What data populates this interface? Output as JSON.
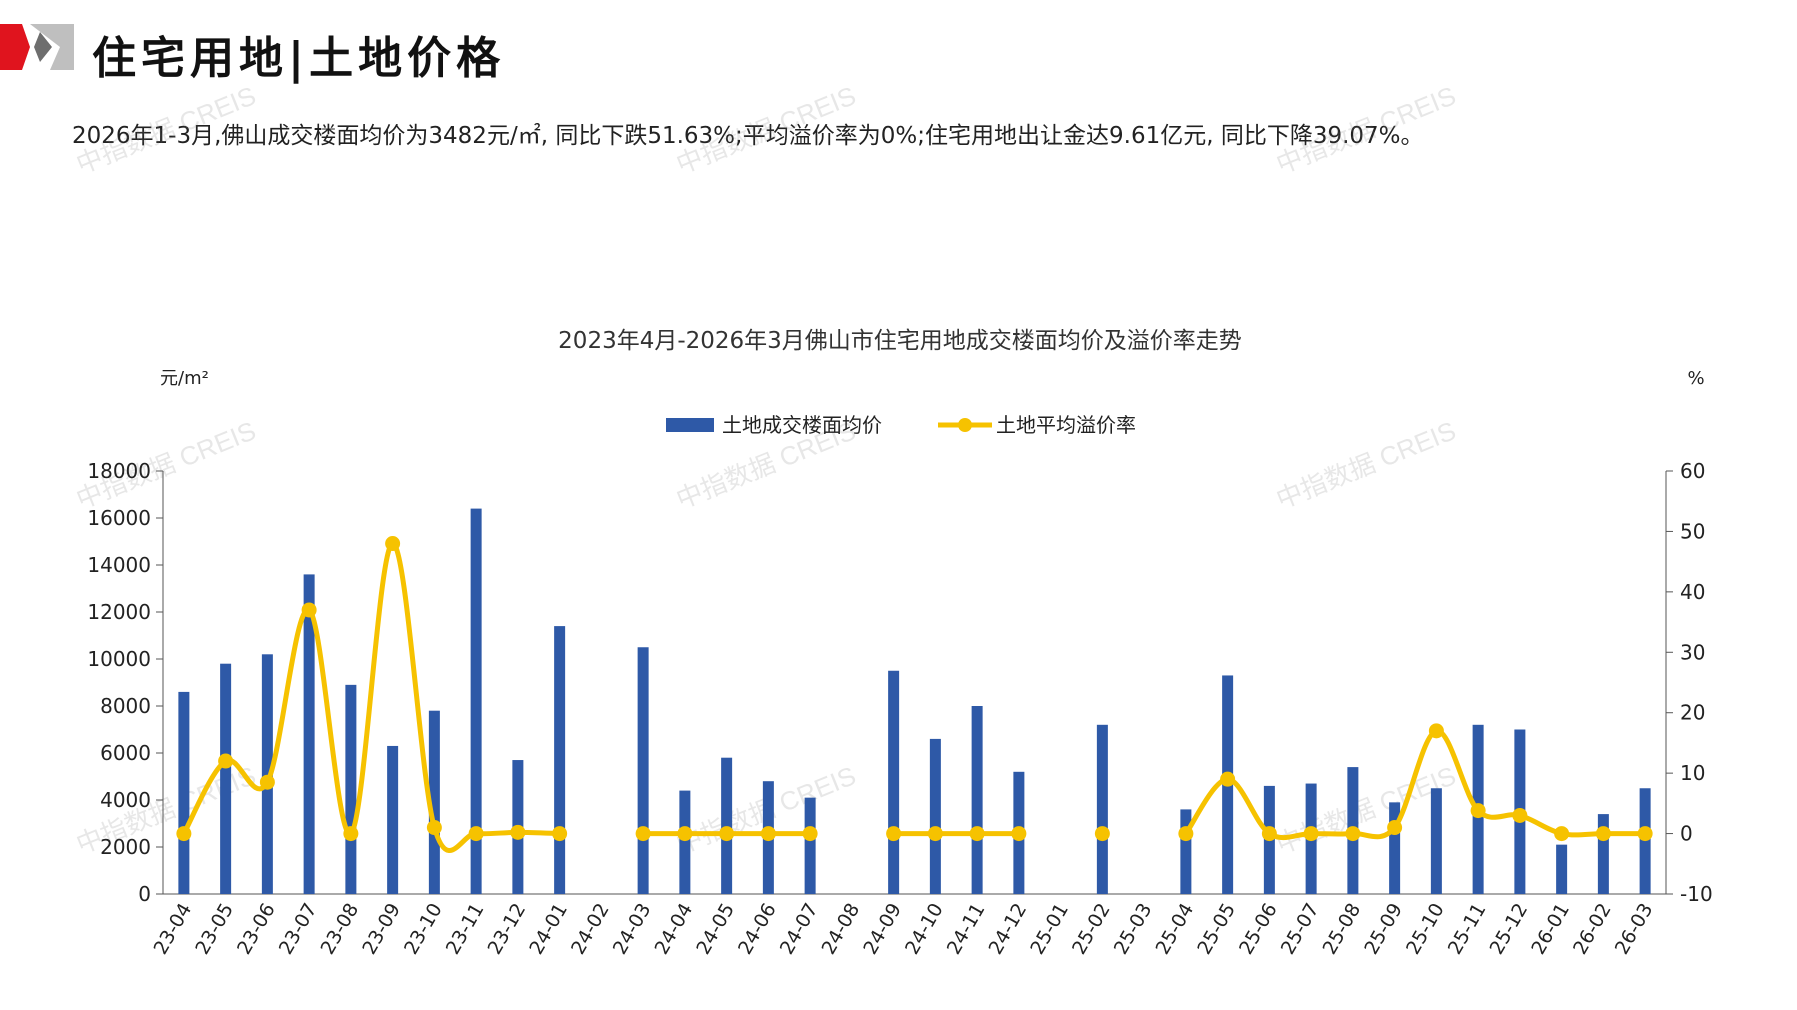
{
  "header": {
    "title": "住宅用地|土地价格",
    "summary": "2026年1-3月,佛山成交楼面均价为3482元/㎡, 同比下跌51.63%;平均溢价率为0%;住宅用地出让金达9.61亿元, 同比下降39.07%。"
  },
  "watermark": {
    "text": "中指数据 CREIS"
  },
  "colors": {
    "bar": "#2e59a7",
    "line": "#f6c200",
    "brand_red": "#e0141e",
    "brand_gray": "#8c8c8c"
  },
  "chart_data": {
    "type": "bar",
    "title": "2023年4月-2026年3月佛山市住宅用地成交楼面均价及溢价率走势",
    "ylabel": "元/m²",
    "y2label": "%",
    "ylim": [
      0,
      18000
    ],
    "y2lim": [
      -10,
      60
    ],
    "yticks": [
      "0",
      "2000",
      "4000",
      "6000",
      "8000",
      "10000",
      "12000",
      "14000",
      "16000",
      "18000"
    ],
    "y2ticks": [
      "-10",
      "0",
      "10",
      "20",
      "30",
      "40",
      "50",
      "60"
    ],
    "legend_position": "top-center",
    "categories": [
      "23-04",
      "23-05",
      "23-06",
      "23-07",
      "23-08",
      "23-09",
      "23-10",
      "23-11",
      "23-12",
      "24-01",
      "24-02",
      "24-03",
      "24-04",
      "24-05",
      "24-06",
      "24-07",
      "24-08",
      "24-09",
      "24-10",
      "24-11",
      "24-12",
      "25-01",
      "25-02",
      "25-03",
      "25-04",
      "25-05",
      "25-06",
      "25-07",
      "25-08",
      "25-09",
      "25-10",
      "25-11",
      "25-12",
      "26-01",
      "26-02",
      "26-03"
    ],
    "series": [
      {
        "name": "土地成交楼面均价",
        "type": "bar",
        "axis": "left",
        "values": [
          8600,
          9800,
          10200,
          13600,
          8900,
          6300,
          7800,
          16400,
          5700,
          11400,
          null,
          10500,
          4400,
          5800,
          4800,
          4100,
          null,
          9500,
          6600,
          8000,
          5200,
          null,
          7200,
          null,
          3600,
          9300,
          4600,
          4700,
          5400,
          3900,
          4500,
          7200,
          7000,
          2100,
          3400,
          4500
        ]
      },
      {
        "name": "土地平均溢价率",
        "type": "line",
        "axis": "right",
        "values": [
          0,
          12,
          8.5,
          37,
          0,
          48,
          1,
          0,
          0.2,
          0,
          null,
          0,
          0,
          0,
          0,
          0,
          null,
          0,
          0,
          0,
          0,
          null,
          0,
          null,
          0,
          9,
          0,
          0,
          0,
          1,
          17,
          3.8,
          3,
          0,
          0,
          0
        ]
      }
    ]
  }
}
